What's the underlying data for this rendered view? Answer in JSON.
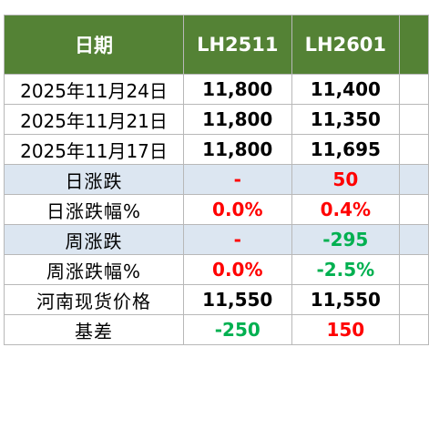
{
  "header": {
    "col_date": "日期",
    "col_1": "LH2511",
    "col_2": "LH2601",
    "col_3": ""
  },
  "rows": [
    {
      "label": "2025年11月24日",
      "v1": "11,800",
      "v2": "11,400",
      "v1_color": "black",
      "v2_color": "black",
      "band": "white"
    },
    {
      "label": "2025年11月21日",
      "v1": "11,800",
      "v2": "11,350",
      "v1_color": "black",
      "v2_color": "black",
      "band": "white"
    },
    {
      "label": "2025年11月17日",
      "v1": "11,800",
      "v2": "11,695",
      "v1_color": "black",
      "v2_color": "black",
      "band": "white"
    },
    {
      "label": "日涨跌",
      "v1": "-",
      "v2": "50",
      "v1_color": "red",
      "v2_color": "red",
      "band": "blue"
    },
    {
      "label": "日涨跌幅%",
      "v1": "0.0%",
      "v2": "0.4%",
      "v1_color": "red",
      "v2_color": "red",
      "band": "white"
    },
    {
      "label": "周涨跌",
      "v1": "-",
      "v2": "-295",
      "v1_color": "red",
      "v2_color": "green",
      "band": "blue"
    },
    {
      "label": "周涨跌幅%",
      "v1": "0.0%",
      "v2": "-2.5%",
      "v1_color": "red",
      "v2_color": "green",
      "band": "white"
    },
    {
      "label": "河南现货价格",
      "v1": "11,550",
      "v2": "11,550",
      "v1_color": "black",
      "v2_color": "black",
      "band": "white"
    },
    {
      "label": "基差",
      "v1": "-250",
      "v2": "150",
      "v1_color": "green",
      "v2_color": "red",
      "band": "white"
    }
  ],
  "colors": {
    "header_bg": "#548235",
    "header_text": "#ffffff",
    "band_blue": "#dce6f1",
    "up_red": "#ff0000",
    "down_green": "#00b050",
    "border": "#b8b8b8"
  }
}
